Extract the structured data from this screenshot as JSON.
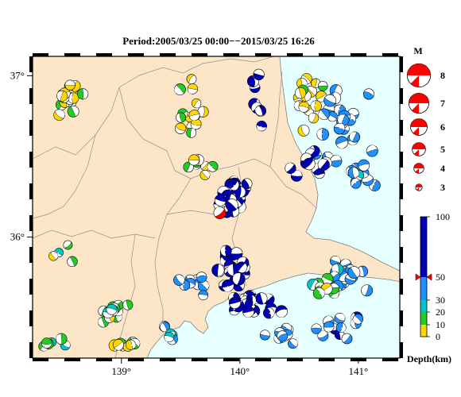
{
  "map": {
    "title": "Period:2005/03/25 00:00−−2015/03/25 16:26",
    "lon_range": [
      138.25,
      141.35
    ],
    "lat_range": [
      35.25,
      37.12
    ],
    "lon_ticks": [
      {
        "v": 139,
        "label": "139°"
      },
      {
        "v": 140,
        "label": "140°"
      },
      {
        "v": 141,
        "label": "141°"
      }
    ],
    "lat_ticks": [
      {
        "v": 36,
        "label": "36°"
      },
      {
        "v": 37,
        "label": "37°"
      }
    ],
    "land_color": "#fde6c8",
    "sea_color": "#e6ffff"
  },
  "legend": {
    "title": "M",
    "magnitudes": [
      {
        "m": 8,
        "label": "8"
      },
      {
        "m": 7,
        "label": "7"
      },
      {
        "m": 6,
        "label": "6"
      },
      {
        "m": 5,
        "label": "5"
      },
      {
        "m": 4,
        "label": "4"
      },
      {
        "m": 3,
        "label": "3"
      }
    ],
    "highlight_color": "#ff0000"
  },
  "depth_scale": {
    "label": "Depth(km)",
    "ticks": [
      {
        "v": 100,
        "label": "100"
      },
      {
        "v": 50,
        "label": "50"
      },
      {
        "v": 30,
        "label": "30"
      },
      {
        "v": 20,
        "label": "20"
      },
      {
        "v": 10,
        "label": "10"
      },
      {
        "v": 0,
        "label": "0"
      }
    ],
    "bands": [
      {
        "from": 0,
        "to": 10,
        "color": "#ffd700"
      },
      {
        "from": 10,
        "to": 20,
        "color": "#22cc22"
      },
      {
        "from": 20,
        "to": 30,
        "color": "#00c8c8"
      },
      {
        "from": 30,
        "to": 50,
        "color": "#1e90ff"
      },
      {
        "from": 50,
        "to": 100,
        "color": "#0000b4"
      }
    ],
    "marker_value": 50,
    "marker_color": "#ff0000"
  },
  "events": {
    "clusters": [
      {
        "lon": 138.55,
        "lat": 36.85,
        "spread": [
          0.25,
          0.15
        ],
        "n": 18,
        "depth": 8,
        "mag": 4.2
      },
      {
        "lon": 139.55,
        "lat": 36.8,
        "spread": [
          0.2,
          0.2
        ],
        "n": 14,
        "depth": 8,
        "mag": 4.1
      },
      {
        "lon": 139.65,
        "lat": 36.45,
        "spread": [
          0.15,
          0.1
        ],
        "n": 8,
        "depth": 8,
        "mag": 4.0
      },
      {
        "lon": 140.55,
        "lat": 36.85,
        "spread": [
          0.2,
          0.2
        ],
        "n": 16,
        "depth": 8,
        "mag": 4.2
      },
      {
        "lon": 140.85,
        "lat": 36.7,
        "spread": [
          0.35,
          0.3
        ],
        "n": 26,
        "depth": 40,
        "mag": 4.4
      },
      {
        "lon": 140.15,
        "lat": 36.85,
        "spread": [
          0.1,
          0.2
        ],
        "n": 8,
        "depth": 70,
        "mag": 4.3
      },
      {
        "lon": 140.6,
        "lat": 36.45,
        "spread": [
          0.2,
          0.15
        ],
        "n": 12,
        "depth": 70,
        "mag": 4.3
      },
      {
        "lon": 141.0,
        "lat": 36.4,
        "spread": [
          0.25,
          0.15
        ],
        "n": 12,
        "depth": 35,
        "mag": 4.2
      },
      {
        "lon": 139.95,
        "lat": 36.25,
        "spread": [
          0.2,
          0.18
        ],
        "n": 26,
        "depth": 70,
        "mag": 4.4
      },
      {
        "lon": 139.9,
        "lat": 35.8,
        "spread": [
          0.25,
          0.2
        ],
        "n": 24,
        "depth": 70,
        "mag": 4.4
      },
      {
        "lon": 140.1,
        "lat": 35.6,
        "spread": [
          0.3,
          0.15
        ],
        "n": 20,
        "depth": 70,
        "mag": 4.3
      },
      {
        "lon": 139.6,
        "lat": 35.7,
        "spread": [
          0.2,
          0.12
        ],
        "n": 10,
        "depth": 40,
        "mag": 4.1
      },
      {
        "lon": 140.9,
        "lat": 35.75,
        "spread": [
          0.3,
          0.15
        ],
        "n": 22,
        "depth": 35,
        "mag": 4.3
      },
      {
        "lon": 140.7,
        "lat": 35.7,
        "spread": [
          0.2,
          0.12
        ],
        "n": 10,
        "depth": 15,
        "mag": 4.2
      },
      {
        "lon": 140.8,
        "lat": 35.45,
        "spread": [
          0.3,
          0.1
        ],
        "n": 12,
        "depth": 45,
        "mag": 4.1
      },
      {
        "lon": 140.35,
        "lat": 35.4,
        "spread": [
          0.2,
          0.1
        ],
        "n": 10,
        "depth": 40,
        "mag": 4.0
      },
      {
        "lon": 138.95,
        "lat": 35.55,
        "spread": [
          0.2,
          0.12
        ],
        "n": 14,
        "depth": 15,
        "mag": 4.2
      },
      {
        "lon": 139.05,
        "lat": 35.35,
        "spread": [
          0.15,
          0.08
        ],
        "n": 8,
        "depth": 8,
        "mag": 4.1
      },
      {
        "lon": 138.45,
        "lat": 35.35,
        "spread": [
          0.15,
          0.08
        ],
        "n": 6,
        "depth": 18,
        "mag": 4.0
      },
      {
        "lon": 139.4,
        "lat": 35.4,
        "spread": [
          0.2,
          0.1
        ],
        "n": 6,
        "depth": 25,
        "mag": 4.0
      },
      {
        "lon": 138.55,
        "lat": 35.9,
        "spread": [
          0.2,
          0.1
        ],
        "n": 4,
        "depth": 12,
        "mag": 3.8
      }
    ],
    "highlight": {
      "lon": 139.83,
      "lat": 36.15,
      "mag": 4.6
    }
  }
}
